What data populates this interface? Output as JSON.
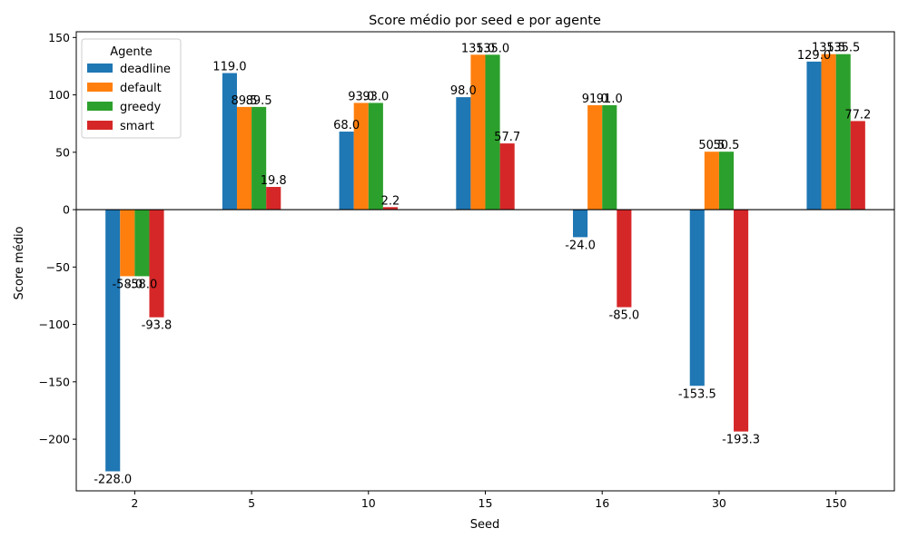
{
  "chart_data": {
    "type": "bar",
    "title": "Score médio por seed e por agente",
    "xlabel": "Seed",
    "ylabel": "Score médio",
    "categories": [
      "2",
      "5",
      "10",
      "15",
      "16",
      "30",
      "150"
    ],
    "ylim": [
      -245,
      155
    ],
    "yticks": [
      -200,
      -150,
      -100,
      -50,
      0,
      50,
      100,
      150
    ],
    "ytick_labels": [
      "−200",
      "−150",
      "−100",
      "−50",
      "0",
      "50",
      "100",
      "150"
    ],
    "grid": false,
    "legend": {
      "title": "Agente",
      "placement": "top-left"
    },
    "series": [
      {
        "name": "deadline",
        "color": "#1f77b4",
        "values": [
          -228.0,
          119.0,
          68.0,
          98.0,
          -24.0,
          -153.5,
          129.0
        ],
        "labels": [
          "-228.0",
          "119.0",
          "68.0",
          "98.0",
          "-24.0",
          "-153.5",
          "129.0"
        ]
      },
      {
        "name": "default",
        "color": "#ff7f0e",
        "values": [
          -58.0,
          89.5,
          93.0,
          135.0,
          91.0,
          50.5,
          135.5
        ],
        "labels": [
          "-58.0",
          "89.5",
          "93.0",
          "135.0",
          "91.0",
          "50.5",
          "135.5"
        ]
      },
      {
        "name": "greedy",
        "color": "#2ca02c",
        "values": [
          -58.0,
          89.5,
          93.0,
          135.0,
          91.0,
          50.5,
          135.5
        ],
        "labels": [
          "-58.0",
          "89.5",
          "93.0",
          "135.0",
          "91.0",
          "50.5",
          "135.5"
        ]
      },
      {
        "name": "smart",
        "color": "#d62728",
        "values": [
          -93.8,
          19.8,
          2.2,
          57.7,
          -85.0,
          -193.3,
          77.2
        ],
        "labels": [
          "-93.8",
          "19.8",
          "2.2",
          "57.7",
          "-85.0",
          "-193.3",
          "77.2"
        ]
      }
    ]
  }
}
